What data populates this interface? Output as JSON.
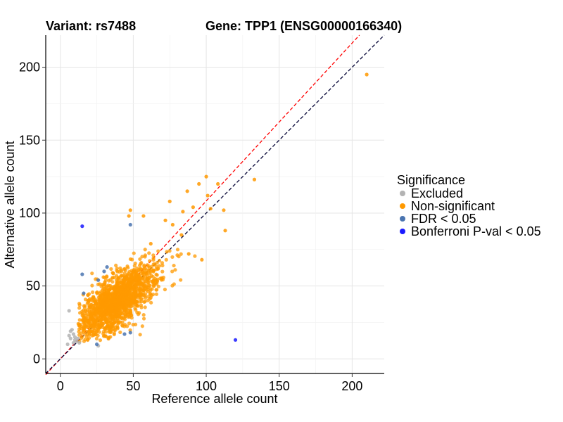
{
  "chart_data": {
    "type": "scatter",
    "title_left": "Variant: rs7488",
    "title_right": "Gene: TPP1 (ENSG00000166340)",
    "xlabel": "Reference allele count",
    "ylabel": "Alternative allele count",
    "xlim": [
      -10,
      222
    ],
    "ylim": [
      -10,
      222
    ],
    "xticks": [
      0,
      50,
      100,
      150,
      200
    ],
    "yticks": [
      0,
      50,
      100,
      150,
      200
    ],
    "grid": true,
    "reference_lines": [
      {
        "color": "#ff0000",
        "dash": "dashed",
        "slope": 1.083,
        "intercept": 0
      },
      {
        "color": "#000033",
        "dash": "dashed",
        "slope": 1.0,
        "intercept": 0
      }
    ],
    "legend": {
      "title": "Significance",
      "placement": "right",
      "entries": [
        {
          "label": "Excluded",
          "color": "#b3b3b3"
        },
        {
          "label": "Non-significant",
          "color": "#ff9900"
        },
        {
          "label": "FDR < 0.05",
          "color": "#4a74b0"
        },
        {
          "label": "Bonferroni P-val < 0.05",
          "color": "#1a1aff"
        }
      ]
    },
    "series": [
      {
        "name": "Excluded",
        "color": "#b3b3b3",
        "points": [
          [
            6,
            33
          ],
          [
            7,
            19
          ],
          [
            8,
            20
          ],
          [
            9,
            17
          ],
          [
            10,
            15
          ],
          [
            11,
            12
          ],
          [
            12,
            14
          ],
          [
            6,
            16
          ],
          [
            5,
            10
          ],
          [
            9,
            11
          ],
          [
            26,
            9
          ],
          [
            10,
            13
          ],
          [
            7,
            14
          ],
          [
            13,
            11
          ]
        ]
      },
      {
        "name": "Non-significant",
        "color": "#ff9900",
        "cluster": {
          "center": [
            38,
            40
          ],
          "count": 1500,
          "spread_x": 14,
          "spread_y": 13,
          "correlation": 0.7,
          "seed": 7488
        },
        "points": [
          [
            210,
            195
          ],
          [
            133,
            123
          ],
          [
            112,
            102
          ],
          [
            113,
            88
          ],
          [
            108,
            120
          ],
          [
            100,
            125
          ],
          [
            95,
            120
          ],
          [
            87,
            115
          ],
          [
            103,
            103
          ],
          [
            101,
            112
          ],
          [
            84,
            101
          ],
          [
            91,
            104
          ],
          [
            75,
            108
          ],
          [
            77,
            92
          ],
          [
            72,
            95
          ],
          [
            48,
            102
          ],
          [
            62,
            79
          ],
          [
            97,
            68
          ],
          [
            88,
            72
          ],
          [
            47,
            98
          ],
          [
            83,
            85
          ],
          [
            57,
            98
          ]
        ]
      },
      {
        "name": "FDR < 0.05",
        "color": "#4a74b0",
        "points": [
          [
            48,
            92
          ],
          [
            15,
            58
          ],
          [
            16,
            45
          ],
          [
            26,
            54
          ],
          [
            32,
            63
          ],
          [
            48,
            18
          ],
          [
            44,
            17
          ],
          [
            25,
            10
          ],
          [
            30,
            60
          ]
        ]
      },
      {
        "name": "Bonferroni P-val < 0.05",
        "color": "#1a1aff",
        "points": [
          [
            15,
            91
          ],
          [
            120,
            13
          ]
        ]
      }
    ]
  }
}
